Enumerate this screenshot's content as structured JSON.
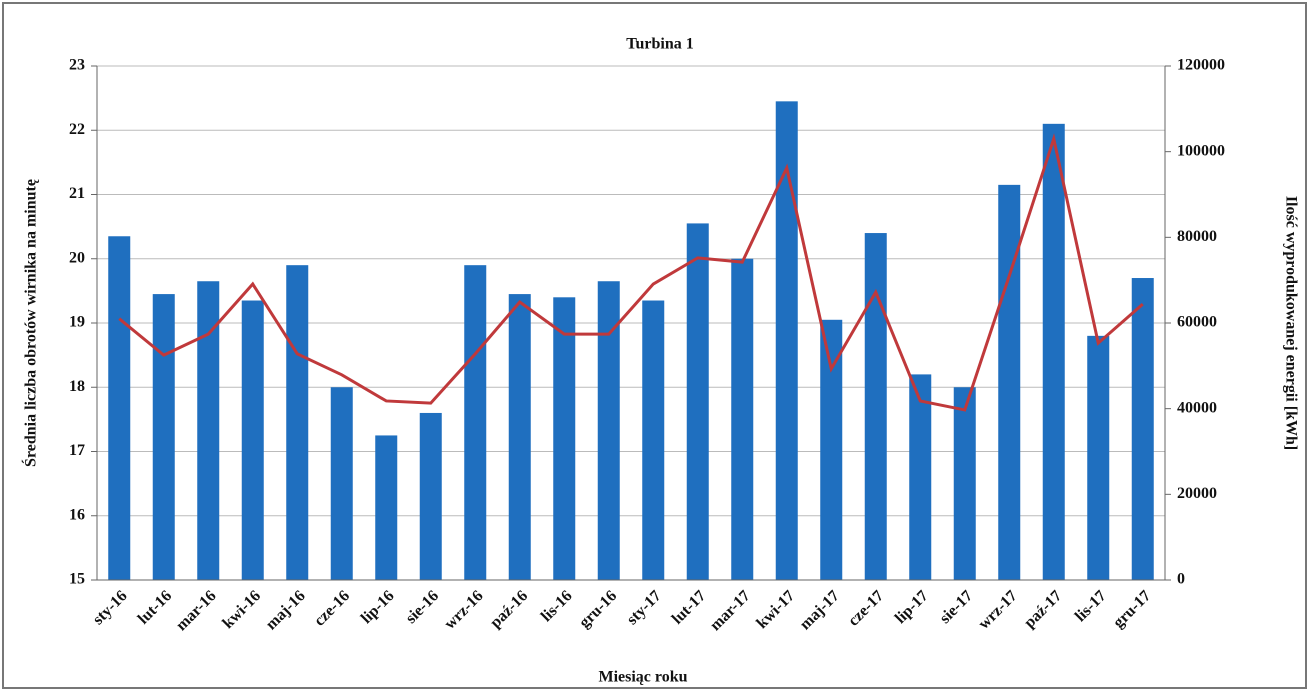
{
  "chart_data": {
    "type": "bar_line",
    "title": "Turbina 1",
    "x_label": "Miesiąc roku",
    "y_label": "Średnia liczba obrotów wirnika na minutę",
    "y2_label": "Ilość wyprodukowanej energii [kWh]",
    "categories": [
      "sty-16",
      "lut-16",
      "mar-16",
      "kwi-16",
      "maj-16",
      "cze-16",
      "lip-16",
      "sie-16",
      "wrz-16",
      "paź-16",
      "lis-16",
      "gru-16",
      "sty-17",
      "lut-17",
      "mar-17",
      "kwi-17",
      "maj-17",
      "cze-17",
      "lip-17",
      "sie-17",
      "wrz-17",
      "paź-17",
      "lis-17",
      "gru-17"
    ],
    "series": [
      {
        "type": "bar",
        "color": "#1f6fbf",
        "values": [
          20.35,
          19.45,
          19.65,
          19.35,
          19.9,
          18.0,
          17.25,
          17.6,
          19.9,
          19.45,
          19.4,
          19.65,
          19.35,
          20.55,
          20.0,
          22.45,
          19.05,
          20.4,
          18.2,
          18.0,
          21.15,
          22.1,
          18.8,
          19.7
        ]
      },
      {
        "type": "line",
        "axis": "y2",
        "color": "#c0393b",
        "values": [
          61000,
          52500,
          57400,
          69100,
          52800,
          47900,
          41800,
          41300,
          52800,
          64900,
          57400,
          57400,
          69100,
          75200,
          74200,
          96200,
          49300,
          67200,
          41800,
          39700,
          71000,
          103000,
          55300,
          64400
        ]
      }
    ],
    "ylim": [
      15,
      23
    ],
    "yticks": [
      15,
      16,
      17,
      18,
      19,
      20,
      21,
      22,
      23
    ],
    "y2lim": [
      0,
      120000
    ],
    "y2ticks": [
      0,
      20000,
      40000,
      60000,
      80000,
      100000,
      120000
    ],
    "grid": true
  }
}
